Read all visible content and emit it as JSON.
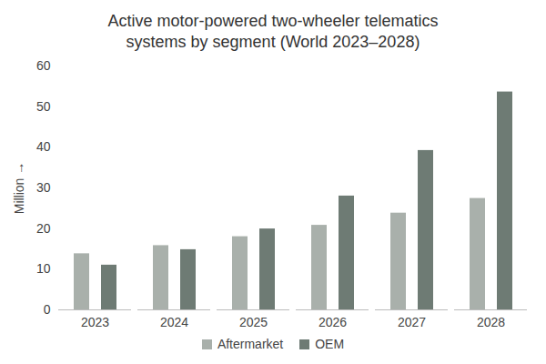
{
  "chart_data": {
    "type": "bar",
    "title": "Active motor-powered two-wheeler telematics systems by segment (World 2023–2028)",
    "y_label": "Million",
    "categories": [
      "2023",
      "2024",
      "2025",
      "2026",
      "2027",
      "2028"
    ],
    "series": [
      {
        "name": "Aftermarket",
        "color": "#a9b0ab",
        "values": [
          13.8,
          15.8,
          18,
          20.8,
          23.8,
          27.4
        ]
      },
      {
        "name": "OEM",
        "color": "#6e7b74",
        "values": [
          11,
          14.8,
          19.9,
          28,
          39.2,
          53.6
        ]
      }
    ],
    "ylim": [
      0,
      60
    ],
    "yticks": [
      0,
      10,
      20,
      30,
      40,
      50,
      60
    ],
    "grid": false,
    "legend": "bottom"
  }
}
